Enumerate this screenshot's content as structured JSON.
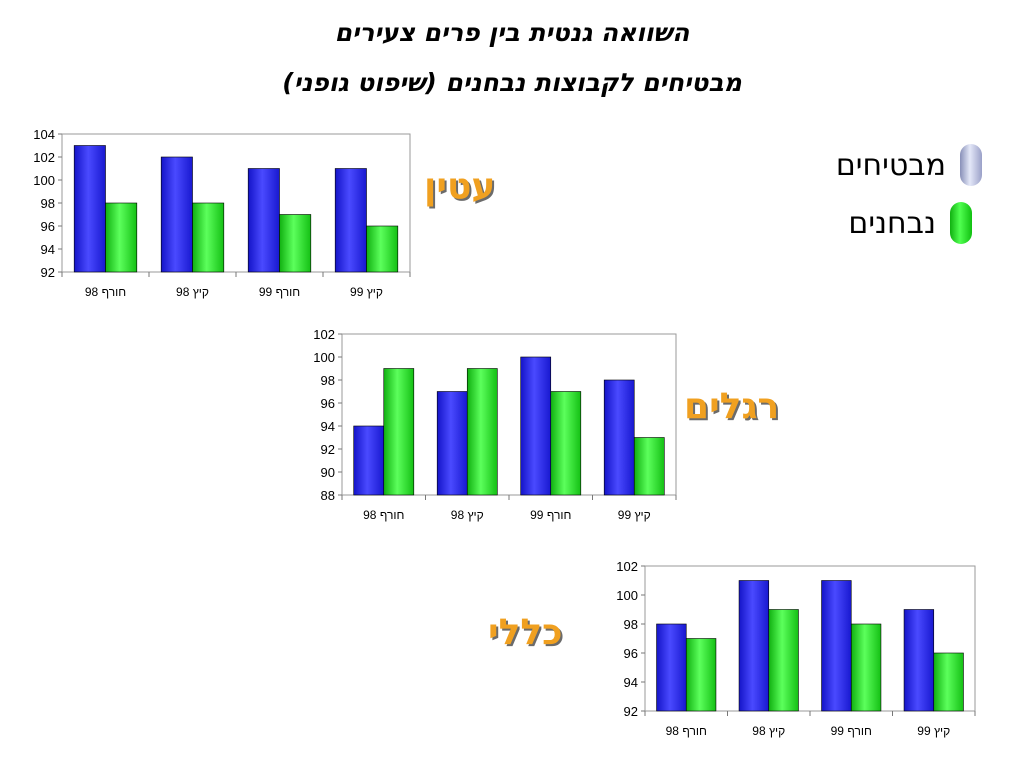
{
  "title_line1": "השוואה גנטית בין פרים צעירים",
  "title_line2": "מבטיחים לקבוצות נבחנים (שיפוט גופני)",
  "legend": [
    {
      "label": "מבטיחים",
      "color": "#c8ccea"
    },
    {
      "label": "נבחנים",
      "color": "#22cc22"
    }
  ],
  "colors": {
    "series_1": "#2020e6",
    "series_2": "#22dd22",
    "label": "#f0a020"
  },
  "chart_data": [
    {
      "type": "bar",
      "title": "עטין",
      "categories": [
        "חורף 98",
        "קיץ 98",
        "חורף 99",
        "קיץ 99"
      ],
      "series": [
        {
          "name": "מבטיחים",
          "values": [
            103,
            102,
            101,
            101
          ]
        },
        {
          "name": "נבחנים",
          "values": [
            98,
            98,
            97,
            96
          ]
        }
      ],
      "ylim": [
        92,
        104
      ],
      "yticks": [
        92,
        94,
        96,
        98,
        100,
        102,
        104
      ],
      "grid": false
    },
    {
      "type": "bar",
      "title": "רגלים",
      "categories": [
        "חורף 98",
        "קיץ 98",
        "חורף 99",
        "קיץ 99"
      ],
      "series": [
        {
          "name": "מבטיחים",
          "values": [
            94,
            97,
            100,
            98
          ]
        },
        {
          "name": "נבחנים",
          "values": [
            99,
            99,
            97,
            93
          ]
        }
      ],
      "ylim": [
        88,
        102
      ],
      "yticks": [
        88,
        90,
        92,
        94,
        96,
        98,
        100,
        102
      ],
      "grid": false
    },
    {
      "type": "bar",
      "title": "כללי",
      "categories": [
        "חורף 98",
        "קיץ 98",
        "חורף 99",
        "קיץ 99"
      ],
      "series": [
        {
          "name": "מבטיחים",
          "values": [
            98,
            101,
            101,
            99
          ]
        },
        {
          "name": "נבחנים",
          "values": [
            97,
            99,
            98,
            96
          ]
        }
      ],
      "ylim": [
        92,
        102
      ],
      "yticks": [
        92,
        94,
        96,
        98,
        100,
        102
      ],
      "grid": false
    }
  ]
}
